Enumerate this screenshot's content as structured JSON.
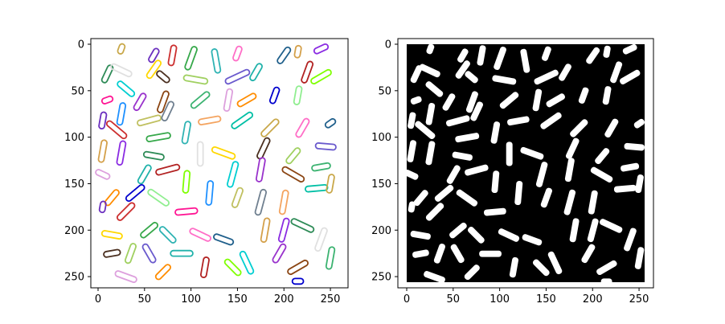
{
  "chart_data": [
    {
      "type": "image",
      "panel": "left",
      "content": "colored contour outlines of segmented rice grains on white background",
      "xlim": [
        0,
        256
      ],
      "ylim": [
        256,
        0
      ],
      "xticks": [
        0,
        50,
        100,
        150,
        200,
        250
      ],
      "yticks": [
        0,
        50,
        100,
        150,
        200,
        250
      ],
      "xtick_labels": [
        "0",
        "50",
        "100",
        "150",
        "200",
        "250"
      ],
      "ytick_labels": [
        "0",
        "50",
        "100",
        "150",
        "200",
        "250"
      ],
      "background": "#ffffff",
      "grains": [
        [
          25,
          5,
          -70,
          11
        ],
        [
          60,
          12,
          -60,
          16
        ],
        [
          80,
          12,
          -80,
          22
        ],
        [
          100,
          15,
          -70,
          26
        ],
        [
          127,
          18,
          -100,
          26
        ],
        [
          150,
          10,
          -70,
          16
        ],
        [
          200,
          12,
          -55,
          20
        ],
        [
          215,
          8,
          -80,
          13
        ],
        [
          240,
          5,
          -25,
          16
        ],
        [
          10,
          32,
          -65,
          20
        ],
        [
          25,
          28,
          25,
          24
        ],
        [
          60,
          27,
          -55,
          22
        ],
        [
          70,
          35,
          40,
          16
        ],
        [
          105,
          38,
          10,
          26
        ],
        [
          150,
          35,
          -25,
          28
        ],
        [
          170,
          30,
          -60,
          20
        ],
        [
          225,
          30,
          -70,
          24
        ],
        [
          240,
          35,
          -30,
          24
        ],
        [
          30,
          48,
          40,
          22
        ],
        [
          45,
          62,
          -60,
          20
        ],
        [
          70,
          62,
          -70,
          24
        ],
        [
          110,
          60,
          -40,
          24
        ],
        [
          140,
          60,
          -80,
          24
        ],
        [
          160,
          60,
          -30,
          22
        ],
        [
          190,
          55,
          -70,
          18
        ],
        [
          215,
          55,
          -80,
          20
        ],
        [
          10,
          60,
          -20,
          12
        ],
        [
          25,
          75,
          -80,
          24
        ],
        [
          55,
          82,
          -15,
          26
        ],
        [
          75,
          72,
          -65,
          22
        ],
        [
          120,
          82,
          -10,
          24
        ],
        [
          155,
          82,
          -35,
          26
        ],
        [
          185,
          90,
          -45,
          24
        ],
        [
          5,
          82,
          -80,
          18
        ],
        [
          20,
          92,
          40,
          26
        ],
        [
          65,
          100,
          -10,
          26
        ],
        [
          95,
          95,
          -80,
          24
        ],
        [
          220,
          90,
          -60,
          22
        ],
        [
          250,
          85,
          -35,
          12
        ],
        [
          5,
          115,
          -80,
          24
        ],
        [
          25,
          117,
          -80,
          26
        ],
        [
          60,
          120,
          10,
          22
        ],
        [
          110,
          118,
          -90,
          26
        ],
        [
          135,
          117,
          20,
          26
        ],
        [
          178,
          112,
          -65,
          24
        ],
        [
          210,
          120,
          -50,
          20
        ],
        [
          245,
          110,
          5,
          22
        ],
        [
          50,
          140,
          -60,
          22
        ],
        [
          75,
          135,
          -15,
          26
        ],
        [
          95,
          148,
          -85,
          24
        ],
        [
          145,
          140,
          -75,
          28
        ],
        [
          175,
          135,
          -80,
          26
        ],
        [
          210,
          140,
          30,
          26
        ],
        [
          240,
          132,
          -10,
          20
        ],
        [
          5,
          140,
          25,
          16
        ],
        [
          15,
          165,
          -50,
          20
        ],
        [
          40,
          160,
          -40,
          24
        ],
        [
          65,
          165,
          35,
          26
        ],
        [
          95,
          180,
          -5,
          24
        ],
        [
          120,
          160,
          -85,
          26
        ],
        [
          150,
          165,
          -70,
          22
        ],
        [
          175,
          170,
          -75,
          28
        ],
        [
          200,
          170,
          -80,
          26
        ],
        [
          235,
          155,
          -5,
          24
        ],
        [
          250,
          150,
          -80,
          20
        ],
        [
          5,
          175,
          -80,
          12
        ],
        [
          30,
          180,
          -45,
          24
        ],
        [
          55,
          200,
          -40,
          22
        ],
        [
          75,
          205,
          45,
          22
        ],
        [
          110,
          205,
          25,
          24
        ],
        [
          135,
          210,
          20,
          22
        ],
        [
          180,
          200,
          -80,
          26
        ],
        [
          200,
          200,
          -75,
          26
        ],
        [
          220,
          195,
          25,
          26
        ],
        [
          240,
          210,
          -70,
          26
        ],
        [
          15,
          205,
          10,
          22
        ],
        [
          15,
          225,
          -10,
          18
        ],
        [
          35,
          225,
          -70,
          22
        ],
        [
          55,
          225,
          60,
          22
        ],
        [
          90,
          225,
          0,
          24
        ],
        [
          115,
          240,
          -80,
          22
        ],
        [
          145,
          240,
          45,
          22
        ],
        [
          160,
          235,
          65,
          26
        ],
        [
          195,
          225,
          -60,
          22
        ],
        [
          215,
          240,
          -30,
          24
        ],
        [
          250,
          230,
          -80,
          24
        ],
        [
          30,
          250,
          20,
          24
        ],
        [
          70,
          245,
          -45,
          20
        ],
        [
          215,
          255,
          0,
          12
        ]
      ],
      "colors": [
        "#c9a84a",
        "#6b2fbf",
        "#cc2f2f",
        "#36a84a",
        "#2fb3b3",
        "#ff6ec7",
        "#1f5f8b",
        "#d4a04a",
        "#8a2be2",
        "#2e8b57",
        "#e0e0e0",
        "#ffd700",
        "#4a2f1f",
        "#a0d060",
        "#6a5acd",
        "#20b2aa",
        "#b22222",
        "#7fff00",
        "#00ced1",
        "#9932cc",
        "#8b4513",
        "#3cb371",
        "#dda0dd",
        "#ff8c00",
        "#0000cd",
        "#90ee90",
        "#ff1493",
        "#1e90ff",
        "#c0c060",
        "#708090",
        "#f4a460",
        "#00bfa5"
      ]
    },
    {
      "type": "image",
      "panel": "right",
      "content": "binary mask of segmented rice grains (white) on black background",
      "xlim": [
        0,
        256
      ],
      "ylim": [
        256,
        0
      ],
      "xticks": [
        0,
        50,
        100,
        150,
        200,
        250
      ],
      "yticks": [
        0,
        50,
        100,
        150,
        200,
        250
      ],
      "xtick_labels": [
        "0",
        "50",
        "100",
        "150",
        "200",
        "250"
      ],
      "ytick_labels": [
        "0",
        "50",
        "100",
        "150",
        "200",
        "250"
      ],
      "background": "#000000",
      "foreground": "#ffffff"
    }
  ]
}
